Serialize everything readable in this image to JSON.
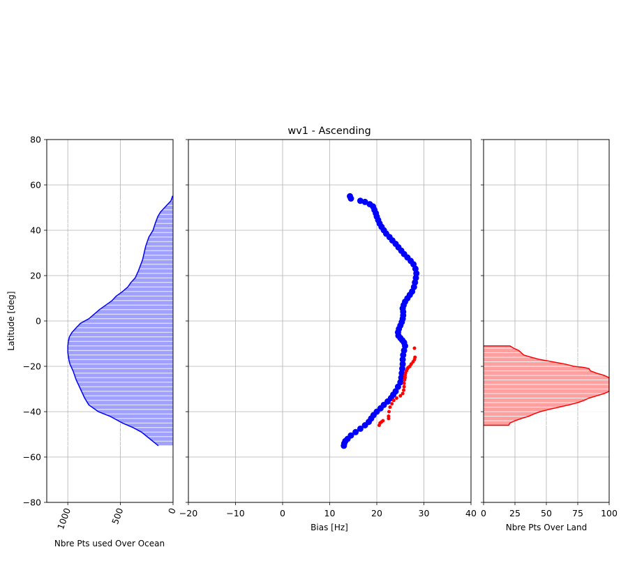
{
  "chart_data": [
    {
      "type": "area",
      "panel": "ocean",
      "title": "",
      "xlabel": "Nbre Pts used Over Ocean",
      "ylabel": "Latitude [deg]",
      "xlim": [
        1200,
        0
      ],
      "ylim": [
        -80,
        80
      ],
      "xticks": [
        "1000",
        "500",
        "0"
      ],
      "xtick_values": [
        1000,
        500,
        0
      ],
      "yticks": [
        "80",
        "60",
        "40",
        "20",
        "0",
        "−20",
        "−40",
        "−60",
        "−80"
      ],
      "ytick_values": [
        80,
        60,
        40,
        20,
        0,
        -20,
        -40,
        -60,
        -80
      ],
      "grid": true,
      "color": "#0000ff",
      "fill_color": "#a0a0ff",
      "series": [
        {
          "x": [
            140,
            220,
            300,
            380,
            480,
            600,
            710,
            800,
            840,
            880,
            920,
            950,
            980,
            990,
            1000,
            1000,
            995,
            985,
            960,
            920,
            880,
            800,
            750,
            700,
            640,
            580,
            540,
            480,
            430,
            400,
            360,
            330,
            290,
            260,
            230,
            190,
            170,
            145,
            120,
            60,
            20,
            5,
            0
          ],
          "y": [
            -55,
            -52,
            -49,
            -47,
            -45,
            -42,
            -40,
            -37,
            -34,
            -30,
            -26,
            -22,
            -19,
            -17,
            -14,
            -11,
            -9,
            -7,
            -5,
            -3,
            -1,
            1,
            3,
            5,
            7,
            9,
            11,
            13,
            15,
            17,
            19,
            22,
            27,
            33,
            37,
            40,
            43,
            46,
            48,
            51,
            53,
            55,
            55
          ]
        }
      ]
    },
    {
      "type": "scatter",
      "panel": "bias",
      "title": "wv1 - Ascending",
      "xlabel": "Bias [Hz]",
      "ylabel": "",
      "xlim": [
        -20,
        40
      ],
      "ylim": [
        -80,
        80
      ],
      "xticks": [
        "−20",
        "−10",
        "0",
        "10",
        "20",
        "30",
        "40"
      ],
      "xtick_values": [
        -20,
        -10,
        0,
        10,
        20,
        30,
        40
      ],
      "grid": true,
      "series": [
        {
          "color": "#0000ff",
          "marker_size": 4.5,
          "x": [
            13,
            13.1,
            13.3,
            13.8,
            14.5,
            15.5,
            16.5,
            17.5,
            18.3,
            18.8,
            19.3,
            20,
            20.8,
            21.5,
            22.3,
            23,
            23.5,
            24,
            24.5,
            25,
            25.2,
            25.3,
            25.4,
            25.5,
            25.5,
            25.6,
            25.8,
            26,
            25.8,
            25.4,
            25,
            24.6,
            24.5,
            24.7,
            25,
            25.3,
            25.5,
            25.6,
            25.6,
            25.5,
            25.7,
            26,
            26.5,
            27,
            27.5,
            27.9,
            28.1,
            28.3,
            28.4,
            28.2,
            27.8,
            27.2,
            26.5,
            25.8,
            25.2,
            24.6,
            24,
            23.3,
            22.7,
            22,
            21.5,
            21,
            20.6,
            20.3,
            20,
            19.8,
            19.5,
            19.2,
            18.5,
            17.5,
            16.5,
            14.5,
            14.3
          ],
          "y": [
            -55,
            -54,
            -53,
            -52,
            -50.5,
            -49,
            -47.5,
            -46,
            -44.5,
            -43,
            -41.5,
            -40,
            -38.5,
            -37,
            -35.5,
            -34,
            -32.5,
            -31,
            -29,
            -27,
            -25,
            -23,
            -21,
            -19,
            -17,
            -15,
            -13,
            -11,
            -9.5,
            -8.5,
            -7.5,
            -6.5,
            -5,
            -3.5,
            -2,
            -0.5,
            1,
            2.5,
            4,
            5.5,
            7,
            8.5,
            10,
            11.5,
            13,
            15,
            17,
            19,
            21,
            23,
            25,
            26.5,
            28,
            29.5,
            31,
            32.5,
            34,
            35.5,
            37,
            38.5,
            40,
            41.5,
            43,
            44.5,
            46,
            47.5,
            49,
            50.5,
            51.5,
            52.5,
            53,
            54,
            55
          ]
        },
        {
          "color": "#ff0000",
          "marker_size": 2.5,
          "x": [
            20.5,
            20.7,
            21,
            21.3,
            22.5,
            22.5,
            22.6,
            22.8,
            23.2,
            23.6,
            24.2,
            25,
            25.5,
            25.7,
            25.8,
            25.8,
            25.9,
            26,
            26,
            26.1,
            26.3,
            26.5,
            26.7,
            27,
            27.3,
            27.7,
            28,
            28.1,
            28
          ],
          "y": [
            -46,
            -45,
            -44.5,
            -44,
            -43,
            -42,
            -40,
            -38,
            -36.5,
            -35,
            -34,
            -33,
            -32,
            -30.5,
            -29,
            -27.5,
            -26,
            -25,
            -24,
            -23,
            -22,
            -21,
            -20.5,
            -20,
            -19,
            -18,
            -17,
            -16,
            -12
          ]
        }
      ]
    },
    {
      "type": "area",
      "panel": "land",
      "title": "",
      "xlabel": "Nbre Pts Over Land",
      "ylabel": "",
      "xlim": [
        0,
        100
      ],
      "ylim": [
        -80,
        80
      ],
      "xticks": [
        "0",
        "25",
        "50",
        "75",
        "100"
      ],
      "xtick_values": [
        0,
        25,
        50,
        75,
        100
      ],
      "grid": true,
      "color": "#ff0000",
      "fill_color": "#ffa0a0",
      "series": [
        {
          "x": [
            0,
            20,
            21,
            25,
            30,
            36,
            40,
            45,
            52,
            60,
            68,
            75,
            80,
            84,
            90,
            96,
            100,
            100,
            96,
            90,
            85,
            84,
            80,
            72,
            65,
            55,
            45,
            38,
            32,
            28,
            24,
            21,
            0
          ],
          "y": [
            -46,
            -46,
            -45,
            -44,
            -43,
            -42,
            -41,
            -40,
            -39,
            -38,
            -37,
            -36,
            -35,
            -34,
            -33,
            -32,
            -31,
            -25,
            -24,
            -23,
            -22,
            -21,
            -20.5,
            -20,
            -19,
            -18,
            -17,
            -16,
            -15,
            -13,
            -12,
            -11,
            -11
          ]
        }
      ]
    }
  ]
}
